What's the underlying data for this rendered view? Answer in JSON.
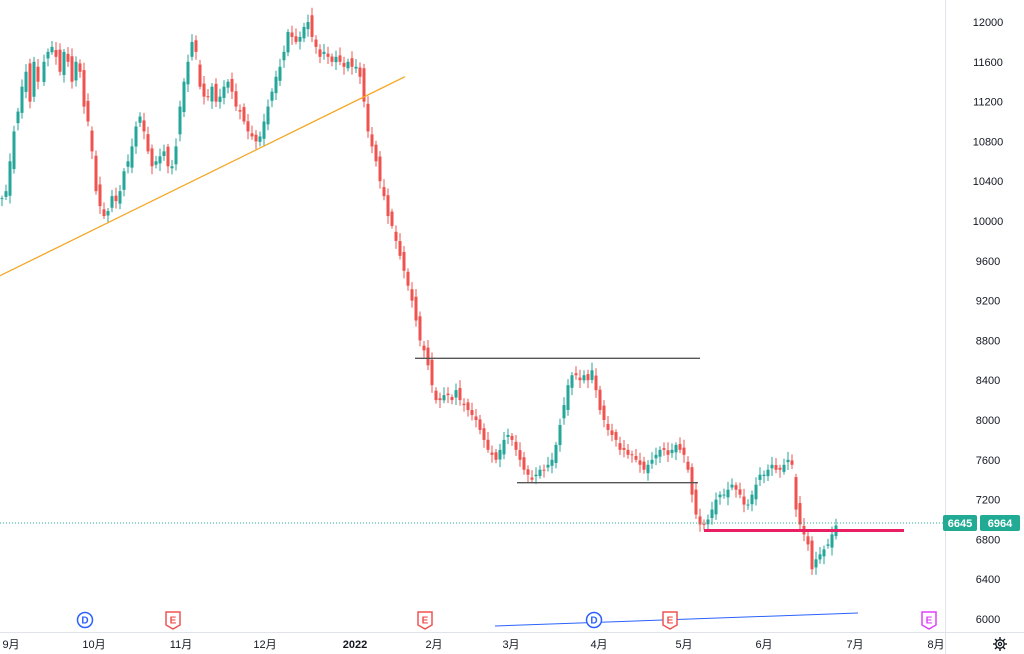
{
  "chart_data": {
    "type": "candlestick",
    "y_ticks": [
      12000,
      11600,
      11200,
      10800,
      10400,
      10000,
      9600,
      9200,
      8800,
      8400,
      8000,
      7600,
      7200,
      6800,
      6400,
      6000
    ],
    "ylim": [
      5880,
      12200
    ],
    "x_labels": [
      "9月",
      "10月",
      "11月",
      "12月",
      "2022",
      "2月",
      "3月",
      "4月",
      "5月",
      "6月",
      "7月",
      "8月"
    ],
    "price_tags": {
      "left": "6645",
      "right": "6964"
    },
    "colors": {
      "up": "#26a69a",
      "down": "#ef5350",
      "accent_tag": "#22ab94"
    },
    "event_badges": [
      {
        "letter": "D",
        "kind": "dividend",
        "color": "#2962ff"
      },
      {
        "letter": "E",
        "kind": "earnings",
        "color": "#ef5350"
      },
      {
        "letter": "E",
        "kind": "earnings",
        "color": "#ef5350"
      },
      {
        "letter": "D",
        "kind": "dividend",
        "color": "#2962ff"
      },
      {
        "letter": "E",
        "kind": "earnings",
        "color": "#ef5350"
      },
      {
        "letter": "E",
        "kind": "earnings",
        "color": "#e040fb"
      }
    ],
    "horizontal_lines": [
      {
        "name": "resistance",
        "value": 8620,
        "color": "#555555"
      },
      {
        "name": "support",
        "value": 7370,
        "color": "#555555"
      },
      {
        "name": "recent-level",
        "value": 6890,
        "color": "#e91e63"
      }
    ],
    "trend_lines": [
      {
        "name": "rising-trend",
        "from": 9450,
        "to": 11450,
        "color": "#f5a623"
      },
      {
        "name": "bottom-trend",
        "from": 5930,
        "to": 6060,
        "color": "#2962ff"
      }
    ],
    "anchors": [
      [
        2,
        10230
      ],
      [
        6,
        10300
      ],
      [
        10,
        10600
      ],
      [
        14,
        10900
      ],
      [
        18,
        11100
      ],
      [
        22,
        11350
      ],
      [
        26,
        11500
      ],
      [
        30,
        11200
      ],
      [
        34,
        11600
      ],
      [
        38,
        11400
      ],
      [
        44,
        11600
      ],
      [
        48,
        11700
      ],
      [
        52,
        11750
      ],
      [
        56,
        11650
      ],
      [
        60,
        11500
      ],
      [
        64,
        11700
      ],
      [
        68,
        11600
      ],
      [
        72,
        11400
      ],
      [
        76,
        11600
      ],
      [
        80,
        11500
      ],
      [
        84,
        11150
      ],
      [
        88,
        11000
      ],
      [
        92,
        10700
      ],
      [
        96,
        10300
      ],
      [
        100,
        10150
      ],
      [
        104,
        10050
      ],
      [
        108,
        10100
      ],
      [
        112,
        10250
      ],
      [
        116,
        10200
      ],
      [
        120,
        10300
      ],
      [
        124,
        10500
      ],
      [
        128,
        10600
      ],
      [
        132,
        10750
      ],
      [
        136,
        10950
      ],
      [
        140,
        11050
      ],
      [
        144,
        10900
      ],
      [
        148,
        10700
      ],
      [
        152,
        10550
      ],
      [
        156,
        10600
      ],
      [
        160,
        10650
      ],
      [
        164,
        10700
      ],
      [
        168,
        10550
      ],
      [
        172,
        10550
      ],
      [
        176,
        10750
      ],
      [
        180,
        11150
      ],
      [
        184,
        11400
      ],
      [
        188,
        11600
      ],
      [
        192,
        11800
      ],
      [
        196,
        11700
      ],
      [
        200,
        11350
      ],
      [
        204,
        11250
      ],
      [
        208,
        11250
      ],
      [
        212,
        11350
      ],
      [
        216,
        11200
      ],
      [
        220,
        11250
      ],
      [
        224,
        11350
      ],
      [
        228,
        11400
      ],
      [
        232,
        11300
      ],
      [
        236,
        11150
      ],
      [
        240,
        11100
      ],
      [
        244,
        11000
      ],
      [
        248,
        10900
      ],
      [
        252,
        10850
      ],
      [
        256,
        10800
      ],
      [
        260,
        10850
      ],
      [
        264,
        11000
      ],
      [
        268,
        11150
      ],
      [
        272,
        11300
      ],
      [
        276,
        11450
      ],
      [
        280,
        11550
      ],
      [
        284,
        11700
      ],
      [
        288,
        11900
      ],
      [
        292,
        11850
      ],
      [
        296,
        11800
      ],
      [
        300,
        11850
      ],
      [
        304,
        11950
      ],
      [
        308,
        12000
      ],
      [
        312,
        11850
      ],
      [
        316,
        11750
      ],
      [
        320,
        11650
      ],
      [
        324,
        11700
      ],
      [
        328,
        11650
      ],
      [
        332,
        11600
      ],
      [
        336,
        11650
      ],
      [
        340,
        11600
      ],
      [
        344,
        11550
      ],
      [
        348,
        11600
      ],
      [
        352,
        11550
      ],
      [
        356,
        11550
      ],
      [
        360,
        11450
      ],
      [
        364,
        11200
      ],
      [
        368,
        10900
      ],
      [
        372,
        10750
      ],
      [
        376,
        10600
      ],
      [
        380,
        10400
      ],
      [
        384,
        10250
      ],
      [
        388,
        10050
      ],
      [
        392,
        9950
      ],
      [
        396,
        9800
      ],
      [
        400,
        9650
      ],
      [
        404,
        9500
      ],
      [
        408,
        9350
      ],
      [
        412,
        9200
      ],
      [
        416,
        9000
      ],
      [
        420,
        8800
      ],
      [
        424,
        8700
      ],
      [
        428,
        8550
      ],
      [
        432,
        8350
      ],
      [
        436,
        8200
      ],
      [
        440,
        8200
      ],
      [
        444,
        8250
      ],
      [
        448,
        8250
      ],
      [
        452,
        8200
      ],
      [
        456,
        8300
      ],
      [
        460,
        8200
      ],
      [
        464,
        8150
      ],
      [
        468,
        8100
      ],
      [
        472,
        8050
      ],
      [
        476,
        8000
      ],
      [
        480,
        7900
      ],
      [
        484,
        7800
      ],
      [
        488,
        7700
      ],
      [
        492,
        7650
      ],
      [
        496,
        7600
      ],
      [
        500,
        7700
      ],
      [
        504,
        7800
      ],
      [
        508,
        7850
      ],
      [
        512,
        7800
      ],
      [
        516,
        7700
      ],
      [
        520,
        7600
      ],
      [
        524,
        7500
      ],
      [
        528,
        7450
      ],
      [
        532,
        7400
      ],
      [
        536,
        7450
      ],
      [
        540,
        7500
      ],
      [
        544,
        7500
      ],
      [
        548,
        7550
      ],
      [
        552,
        7600
      ],
      [
        556,
        7750
      ],
      [
        560,
        7950
      ],
      [
        564,
        8150
      ],
      [
        568,
        8350
      ],
      [
        572,
        8450
      ],
      [
        576,
        8450
      ],
      [
        580,
        8400
      ],
      [
        584,
        8450
      ],
      [
        588,
        8400
      ],
      [
        592,
        8500
      ],
      [
        596,
        8300
      ],
      [
        600,
        8100
      ],
      [
        604,
        8000
      ],
      [
        608,
        7900
      ],
      [
        612,
        7850
      ],
      [
        616,
        7800
      ],
      [
        620,
        7700
      ],
      [
        624,
        7700
      ],
      [
        628,
        7650
      ],
      [
        632,
        7650
      ],
      [
        636,
        7600
      ],
      [
        640,
        7550
      ],
      [
        644,
        7500
      ],
      [
        648,
        7550
      ],
      [
        652,
        7600
      ],
      [
        656,
        7650
      ],
      [
        660,
        7700
      ],
      [
        664,
        7700
      ],
      [
        668,
        7650
      ],
      [
        672,
        7700
      ],
      [
        676,
        7750
      ],
      [
        680,
        7700
      ],
      [
        684,
        7650
      ],
      [
        688,
        7500
      ],
      [
        692,
        7250
      ],
      [
        696,
        7050
      ],
      [
        700,
        6950
      ],
      [
        704,
        6950
      ],
      [
        708,
        7000
      ],
      [
        712,
        7100
      ],
      [
        716,
        7200
      ],
      [
        720,
        7250
      ],
      [
        724,
        7250
      ],
      [
        728,
        7300
      ],
      [
        732,
        7350
      ],
      [
        736,
        7300
      ],
      [
        740,
        7250
      ],
      [
        744,
        7150
      ],
      [
        748,
        7150
      ],
      [
        752,
        7250
      ],
      [
        756,
        7350
      ],
      [
        760,
        7450
      ],
      [
        764,
        7450
      ],
      [
        768,
        7500
      ],
      [
        772,
        7550
      ],
      [
        776,
        7500
      ],
      [
        780,
        7500
      ],
      [
        784,
        7550
      ],
      [
        788,
        7600
      ],
      [
        792,
        7550
      ],
      [
        796,
        7100
      ],
      [
        800,
        6950
      ],
      [
        804,
        6850
      ],
      [
        808,
        6750
      ],
      [
        812,
        6500
      ],
      [
        816,
        6600
      ],
      [
        820,
        6650
      ],
      [
        824,
        6700
      ],
      [
        828,
        6750
      ],
      [
        832,
        6850
      ],
      [
        836,
        6940
      ]
    ]
  }
}
